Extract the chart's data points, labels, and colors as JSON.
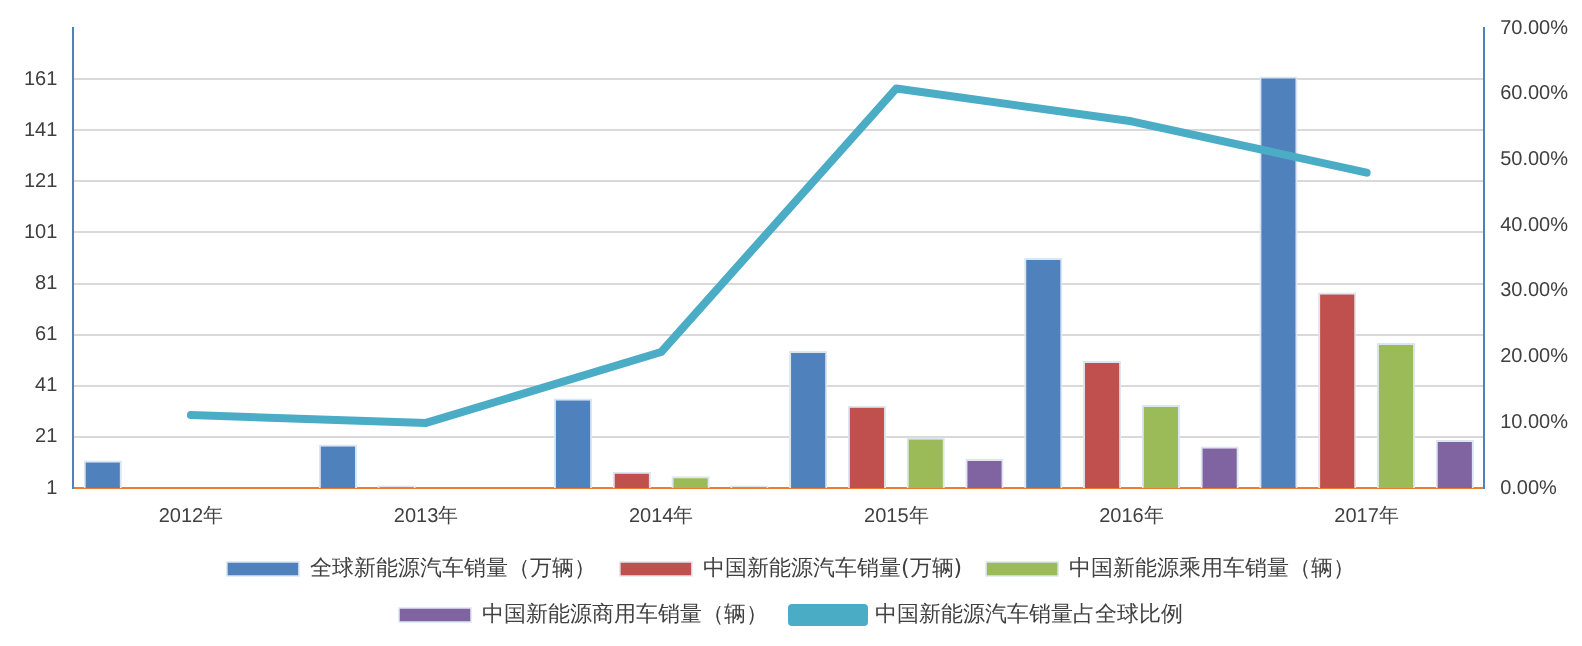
{
  "chart_data": {
    "type": "bar",
    "categories": [
      "2012年",
      "2013年",
      "2014年",
      "2015年",
      "2016年",
      "2017年"
    ],
    "series": [
      {
        "name": "全球新能源汽车销量（万辆）",
        "color": "#4f81bd",
        "values": [
          11.8,
          18,
          36,
          54.6,
          91,
          162
        ]
      },
      {
        "name": "中国新能源汽车销量(万辆)",
        "color": "#c0504d",
        "values": [
          null,
          2,
          7.4,
          33.2,
          50.7,
          77.5
        ]
      },
      {
        "name": "中国新能源乘用车销量（辆）",
        "color": "#9bbb59",
        "values": [
          null,
          null,
          5.6,
          20.8,
          33.5,
          57.7
        ]
      },
      {
        "name": "中国新能源商用车销量（辆）",
        "color": "#8064a2",
        "values": [
          null,
          null,
          2,
          12.3,
          17.2,
          19.8
        ]
      },
      {
        "name": "中国新能源汽车销量占全球比例",
        "color": "#4bacc6",
        "type": "line",
        "axis": "y2",
        "values": [
          11.1,
          9.9,
          20.7,
          60.8,
          55.8,
          48
        ]
      }
    ],
    "ylim": [
      1,
      181
    ],
    "yticks": [
      1,
      21,
      41,
      61,
      81,
      101,
      121,
      141,
      161
    ],
    "y2lim": [
      0,
      70
    ],
    "y2ticks": [
      {
        "value": 0,
        "label": "0.00%"
      },
      {
        "value": 10,
        "label": "10.00%"
      },
      {
        "value": 20,
        "label": "20.00%"
      },
      {
        "value": 30,
        "label": "30.00%"
      },
      {
        "value": 40,
        "label": "40.00%"
      },
      {
        "value": 50,
        "label": "50.00%"
      },
      {
        "value": 60,
        "label": "60.00%"
      },
      {
        "value": 70,
        "label": "70.00%"
      }
    ],
    "grid": "y",
    "legend": "bottom",
    "marker": "none"
  }
}
